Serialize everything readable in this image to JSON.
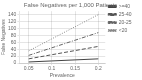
{
  "chart_data": {
    "type": "line",
    "title": "False Negatives per 1,000 Patients",
    "x_label": "Prevalence",
    "y_label": "False Negatives",
    "x": [
      0.05,
      0.1,
      0.15,
      0.2
    ],
    "series": [
      {
        "name": ">=40",
        "color": "#444444",
        "line_style": "solid",
        "values": [
          3,
          6,
          9,
          12
        ]
      },
      {
        "name": "25-40",
        "color": "#555555",
        "line_style": "dashed",
        "values": [
          12,
          24,
          36,
          48
        ]
      },
      {
        "name": "20-25",
        "color": "#666666",
        "line_style": "dashdot",
        "values": [
          22,
          44,
          66,
          88
        ]
      },
      {
        "name": "<20",
        "color": "#888888",
        "line_style": "dotted",
        "values": [
          35,
          70,
          105,
          140
        ]
      }
    ],
    "xlim": [
      0.03,
      0.215
    ],
    "ylim": [
      0,
      150
    ],
    "xticks": [
      0.05,
      0.1,
      0.15,
      0.2
    ],
    "yticks": [
      0,
      20,
      40,
      60,
      80,
      100,
      120,
      140
    ],
    "grid": true,
    "legend": "right"
  }
}
